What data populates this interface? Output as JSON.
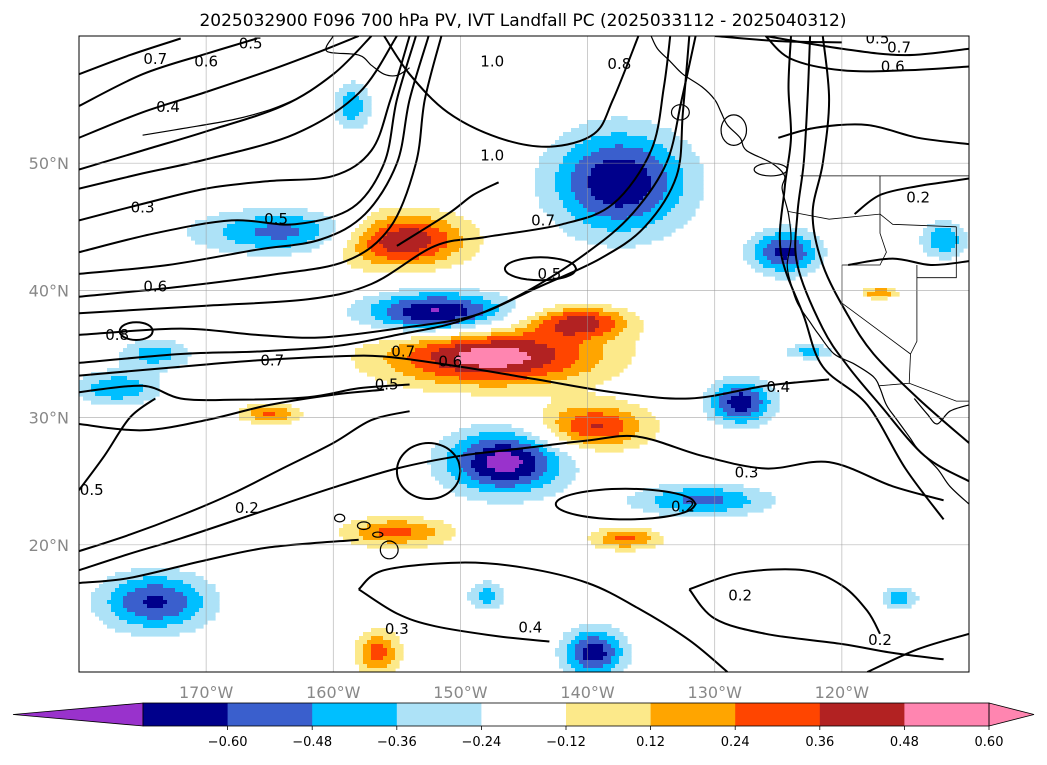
{
  "title": "2025032900 F096 700 hPa PV, IVT Landfall PC (2025033112 - 2025040312)",
  "map": {
    "projection": "platecarree",
    "lon_range": [
      -180,
      -110
    ],
    "lat_range": [
      10,
      60
    ],
    "grid": true,
    "lat_ticks": [
      {
        "lat": 50,
        "label": "50°N"
      },
      {
        "lat": 40,
        "label": "40°N"
      },
      {
        "lat": 30,
        "label": "30°N"
      },
      {
        "lat": 20,
        "label": "20°N"
      }
    ],
    "lon_ticks": [
      {
        "lon": -170,
        "label": "170°W"
      },
      {
        "lon": -160,
        "label": "160°W"
      },
      {
        "lon": -150,
        "label": "150°W"
      },
      {
        "lon": -140,
        "label": "140°W"
      },
      {
        "lon": -130,
        "label": "130°W"
      },
      {
        "lon": -120,
        "label": "120°W"
      }
    ]
  },
  "shading": {
    "field": "IVT Landfall PC",
    "levels": [
      -0.6,
      -0.48,
      -0.36,
      -0.24,
      -0.12,
      0.12,
      0.24,
      0.36,
      0.48,
      0.6
    ],
    "colors": [
      "#9932cc",
      "#00008b",
      "#3a5fcd",
      "#00bfff",
      "#ade2f7",
      "#ffffff",
      "#fce98a",
      "#ffa500",
      "#ff4500",
      "#b22222",
      "#ff85b0"
    ],
    "regions": [
      {
        "name": "gulf-of-alaska-neg",
        "sign": -1,
        "lon": -137.5,
        "lat": 48.5,
        "rx": 5.5,
        "ry": 4.2,
        "peak": 0.6
      },
      {
        "name": "aleutian-neg",
        "sign": -1,
        "lon": -163.5,
        "lat": 44.6,
        "rx": 7.5,
        "ry": 1.8,
        "peak": 0.42
      },
      {
        "name": "alaska-coast-neg",
        "sign": -1,
        "lon": -158.5,
        "lat": 54.5,
        "rx": 1.5,
        "ry": 2.0,
        "peak": 0.32
      },
      {
        "name": "nw-coast-neg",
        "sign": -1,
        "lon": -124.5,
        "lat": 43.0,
        "rx": 2.8,
        "ry": 1.8,
        "peak": 0.52
      },
      {
        "name": "central-pacific-neg-40n",
        "sign": -1,
        "lon": -151.8,
        "lat": 38.2,
        "rx": 5.8,
        "ry": 1.7,
        "peak": 0.66
      },
      {
        "name": "dateline-neg-35n",
        "sign": -1,
        "lon": -174.0,
        "lat": 35.0,
        "rx": 3.0,
        "ry": 1.3,
        "peak": 0.3
      },
      {
        "name": "western-edge-neg-32n",
        "sign": -1,
        "lon": -177.0,
        "lat": 32.3,
        "rx": 3.5,
        "ry": 1.4,
        "peak": 0.34
      },
      {
        "name": "subtropical-neg-26n",
        "sign": -1,
        "lon": -146.5,
        "lat": 26.5,
        "rx": 4.8,
        "ry": 2.6,
        "peak": 0.66
      },
      {
        "name": "eastern-neg-31n",
        "sign": -1,
        "lon": -128.0,
        "lat": 31.2,
        "rx": 2.6,
        "ry": 1.8,
        "peak": 0.56
      },
      {
        "name": "subtropical-neg-23n",
        "sign": -1,
        "lon": -131.0,
        "lat": 23.5,
        "rx": 5.5,
        "ry": 1.3,
        "peak": 0.4
      },
      {
        "name": "hawaii-southwest-neg",
        "sign": -1,
        "lon": -174.0,
        "lat": 15.5,
        "rx": 4.5,
        "ry": 2.4,
        "peak": 0.5
      },
      {
        "name": "south-neg-15n",
        "sign": -1,
        "lon": -148.0,
        "lat": 16.0,
        "rx": 1.5,
        "ry": 1.2,
        "peak": 0.3
      },
      {
        "name": "south-neg-12n",
        "sign": -1,
        "lon": -139.5,
        "lat": 11.5,
        "rx": 2.5,
        "ry": 2.0,
        "peak": 0.55
      },
      {
        "name": "baja-neg",
        "sign": -1,
        "lon": -115.5,
        "lat": 15.8,
        "rx": 1.5,
        "ry": 0.9,
        "peak": 0.32
      },
      {
        "name": "coast-neg-35n",
        "sign": -1,
        "lon": -122.5,
        "lat": 35.2,
        "rx": 2.0,
        "ry": 0.6,
        "peak": 0.3
      },
      {
        "name": "inland-neg",
        "sign": -1,
        "lon": -112.0,
        "lat": 44.0,
        "rx": 1.8,
        "ry": 1.5,
        "peak": 0.36
      },
      {
        "name": "pos-core-44n",
        "sign": 1,
        "lon": -154.8,
        "lat": 44.0,
        "rx": 5.3,
        "ry": 2.2,
        "peak": 0.66
      },
      {
        "name": "pos-band-34n",
        "sign": 1,
        "lon": -147.5,
        "lat": 34.8,
        "rx": 8.8,
        "ry": 2.4,
        "peak": 0.68
      },
      {
        "name": "pos-band-east",
        "sign": 1,
        "lon": -140.5,
        "lat": 37.5,
        "rx": 4.0,
        "ry": 1.3,
        "peak": 0.5
      },
      {
        "name": "pos-tail-29n",
        "sign": 1,
        "lon": -139.5,
        "lat": 29.3,
        "rx": 4.5,
        "ry": 1.9,
        "peak": 0.5
      },
      {
        "name": "pos-west-30n",
        "sign": 1,
        "lon": -165.0,
        "lat": 30.3,
        "rx": 2.5,
        "ry": 0.8,
        "peak": 0.38
      },
      {
        "name": "pos-hawaii-20n",
        "sign": 1,
        "lon": -155.0,
        "lat": 21.0,
        "rx": 4.5,
        "ry": 1.2,
        "peak": 0.4
      },
      {
        "name": "pos-20n-east",
        "sign": 1,
        "lon": -137.0,
        "lat": 20.5,
        "rx": 2.8,
        "ry": 0.9,
        "peak": 0.4
      },
      {
        "name": "pos-south-11n",
        "sign": 1,
        "lon": -156.5,
        "lat": 11.5,
        "rx": 1.8,
        "ry": 1.8,
        "peak": 0.42
      },
      {
        "name": "pos-nw-coast",
        "sign": 1,
        "lon": -117.0,
        "lat": 39.8,
        "rx": 1.5,
        "ry": 0.45,
        "peak": 0.36
      }
    ]
  },
  "contours": {
    "field": "700 hPa PV",
    "labels": [
      {
        "text": "0.5",
        "lon": -166.5,
        "lat": 59.4
      },
      {
        "text": "0.7",
        "lon": -174.0,
        "lat": 58.2
      },
      {
        "text": "0.6",
        "lon": -170.0,
        "lat": 58.0
      },
      {
        "text": "0.4",
        "lon": -173.0,
        "lat": 54.4
      },
      {
        "text": "1.0",
        "lon": -147.5,
        "lat": 58.0
      },
      {
        "text": "0.8",
        "lon": -137.5,
        "lat": 57.8
      },
      {
        "text": "0.5",
        "lon": -117.2,
        "lat": 59.8
      },
      {
        "text": "0.7",
        "lon": -115.5,
        "lat": 59.1
      },
      {
        "text": "0.6",
        "lon": -116.0,
        "lat": 57.6
      },
      {
        "text": "1.0",
        "lon": -147.5,
        "lat": 50.6
      },
      {
        "text": "0.3",
        "lon": -175.0,
        "lat": 46.5
      },
      {
        "text": "0.5",
        "lon": -164.5,
        "lat": 45.6
      },
      {
        "text": "0.7",
        "lon": -143.5,
        "lat": 45.5
      },
      {
        "text": "0.2",
        "lon": -114.0,
        "lat": 47.3
      },
      {
        "text": "0.5",
        "lon": -143.0,
        "lat": 41.3
      },
      {
        "text": "0.6",
        "lon": -174.0,
        "lat": 40.3
      },
      {
        "text": "0.8",
        "lon": -177.0,
        "lat": 36.5
      },
      {
        "text": "0.7",
        "lon": -164.8,
        "lat": 34.5
      },
      {
        "text": "0.7",
        "lon": -154.5,
        "lat": 35.2
      },
      {
        "text": "0.6",
        "lon": -150.8,
        "lat": 34.4
      },
      {
        "text": "0.5",
        "lon": -155.8,
        "lat": 32.6
      },
      {
        "text": "0.4",
        "lon": -125.0,
        "lat": 32.4
      },
      {
        "text": "0.3",
        "lon": -127.5,
        "lat": 25.7
      },
      {
        "text": "0.5",
        "lon": -179.0,
        "lat": 24.3
      },
      {
        "text": "0.2",
        "lon": -166.8,
        "lat": 22.9
      },
      {
        "text": "0.2",
        "lon": -132.5,
        "lat": 23.0
      },
      {
        "text": "0.2",
        "lon": -128.0,
        "lat": 16.0
      },
      {
        "text": "0.3",
        "lon": -155.0,
        "lat": 13.4
      },
      {
        "text": "0.4",
        "lon": -144.5,
        "lat": 13.5
      },
      {
        "text": "0.2",
        "lon": -117.0,
        "lat": 12.5
      }
    ]
  },
  "colorbar": {
    "extend": "both",
    "tick_values": [
      -0.6,
      -0.48,
      -0.36,
      -0.24,
      -0.12,
      0.12,
      0.24,
      0.36,
      0.48,
      0.6
    ],
    "tick_labels": [
      "−0.60",
      "−0.48",
      "−0.36",
      "−0.24",
      "−0.12",
      "0.12",
      "0.24",
      "0.36",
      "0.48",
      "0.60"
    ]
  }
}
